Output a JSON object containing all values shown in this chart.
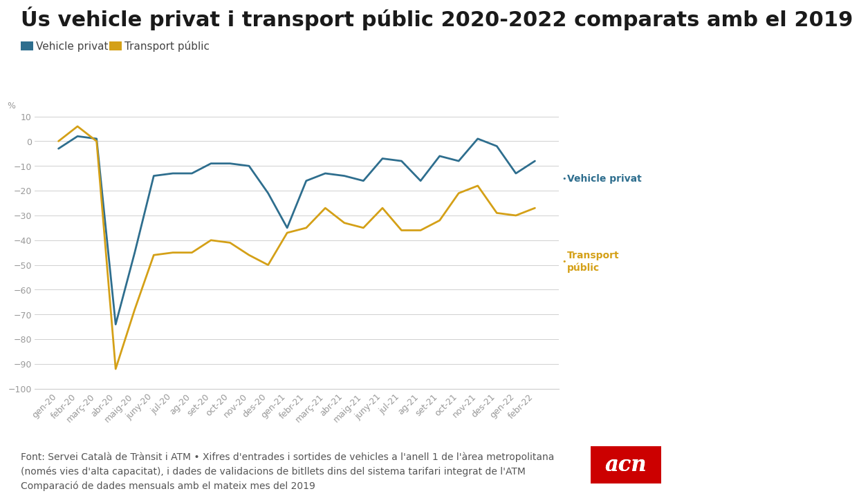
{
  "title": "Ús vehicle privat i transport públic 2020-2022 comparats amb el 2019",
  "ylabel": "%",
  "background_color": "#ffffff",
  "grid_color": "#d0d0d0",
  "private_color": "#2e6e8e",
  "public_color": "#d4a017",
  "x_labels": [
    "gen-20",
    "febr-20",
    "març-20",
    "abr-20",
    "maig-20",
    "juny-20",
    "jul-20",
    "ag-20",
    "set-20",
    "oct-20",
    "nov-20",
    "des-20",
    "gen-21",
    "febr-21",
    "març-21",
    "abr-21",
    "maig-21",
    "juny-21",
    "jul-21",
    "ag-21",
    "set-21",
    "oct-21",
    "nov-21",
    "des-21",
    "gen-22",
    "febr-22"
  ],
  "private_vehicle": [
    -3,
    2,
    1,
    -74,
    -45,
    -14,
    -13,
    -13,
    -9,
    -9,
    -10,
    -21,
    -35,
    -16,
    -13,
    -14,
    -16,
    -7,
    -8,
    -16,
    -6,
    -8,
    1,
    -2,
    -13,
    -8
  ],
  "public_transport": [
    0,
    6,
    0,
    -92,
    -68,
    -46,
    -45,
    -45,
    -40,
    -41,
    -46,
    -50,
    -37,
    -35,
    -27,
    -33,
    -35,
    -27,
    -36,
    -36,
    -32,
    -21,
    -18,
    -29,
    -30,
    -27
  ],
  "footer_text": "Font: Servei Català de Trànsit i ATM • Xifres d'entrades i sortides de vehicles a l'anell 1 de l'àrea metropolitana\n(només vies d'alta capacitat), i dades de validacions de bitllets dins del sistema tarifari integrat de l'ATM\nComparació de dades mensuals amb el mateix mes del 2019",
  "ylim": [
    -100,
    15
  ],
  "yticks": [
    10,
    0,
    -10,
    -20,
    -30,
    -40,
    -50,
    -60,
    -70,
    -80,
    -90,
    -100
  ],
  "title_fontsize": 22,
  "legend_fontsize": 11,
  "tick_fontsize": 10,
  "footer_fontsize": 10,
  "label_private": "Vehicle privat",
  "label_public": "Transport públic",
  "acn_color": "#cc0000"
}
